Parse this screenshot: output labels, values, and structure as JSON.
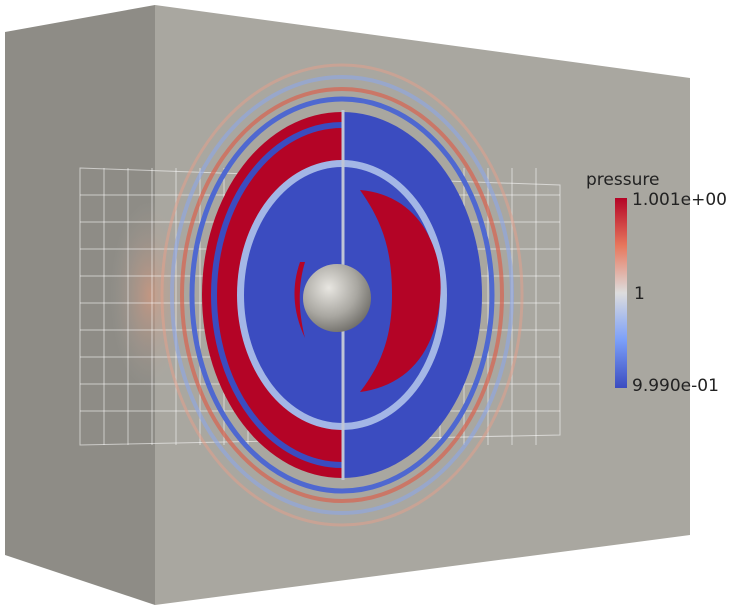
{
  "colorbar": {
    "title": "pressure",
    "labels": [
      "1.001e+00",
      "1",
      "9.990e-01"
    ]
  }
}
